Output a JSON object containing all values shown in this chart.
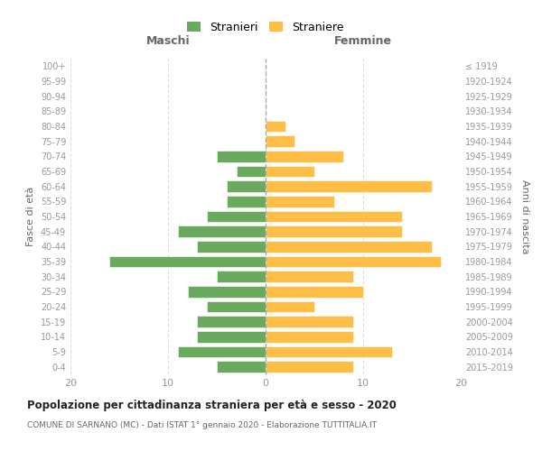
{
  "age_groups": [
    "0-4",
    "5-9",
    "10-14",
    "15-19",
    "20-24",
    "25-29",
    "30-34",
    "35-39",
    "40-44",
    "45-49",
    "50-54",
    "55-59",
    "60-64",
    "65-69",
    "70-74",
    "75-79",
    "80-84",
    "85-89",
    "90-94",
    "95-99",
    "100+"
  ],
  "birth_years": [
    "2015-2019",
    "2010-2014",
    "2005-2009",
    "2000-2004",
    "1995-1999",
    "1990-1994",
    "1985-1989",
    "1980-1984",
    "1975-1979",
    "1970-1974",
    "1965-1969",
    "1960-1964",
    "1955-1959",
    "1950-1954",
    "1945-1949",
    "1940-1944",
    "1935-1939",
    "1930-1934",
    "1925-1929",
    "1920-1924",
    "≤ 1919"
  ],
  "maschi": [
    5,
    9,
    7,
    7,
    6,
    8,
    5,
    16,
    7,
    9,
    6,
    4,
    4,
    3,
    5,
    0,
    0,
    0,
    0,
    0,
    0
  ],
  "femmine": [
    9,
    13,
    9,
    9,
    5,
    10,
    9,
    18,
    17,
    14,
    14,
    7,
    17,
    5,
    8,
    3,
    2,
    0,
    0,
    0,
    0
  ],
  "maschi_color": "#6aaa5e",
  "femmine_color": "#ffbf47",
  "title": "Popolazione per cittadinanza straniera per età e sesso - 2020",
  "subtitle": "COMUNE DI SARNANO (MC) - Dati ISTAT 1° gennaio 2020 - Elaborazione TUTTITALIA.IT",
  "xlabel_left": "Maschi",
  "xlabel_right": "Femmine",
  "ylabel_left": "Fasce di età",
  "ylabel_right": "Anni di nascita",
  "xlim": 20,
  "legend_stranieri": "Stranieri",
  "legend_straniere": "Straniere",
  "bg_color": "#ffffff",
  "grid_color": "#dddddd"
}
